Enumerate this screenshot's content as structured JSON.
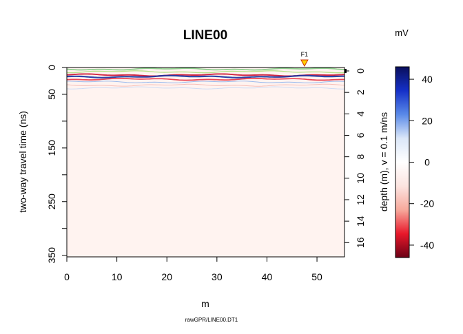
{
  "chart_data": {
    "type": "heatmap",
    "title": "LINE00",
    "unit_label": "mV",
    "xlabel": "m",
    "ylabel_left": "two-way travel time (ns)",
    "ylabel_right": "depth (m),   v = 0.1 m/ns",
    "source": "rawGPR/LINE00.DT1",
    "xlim": [
      0,
      55.5
    ],
    "ylim": [
      0,
      353
    ],
    "depth_lim": [
      0,
      17.65
    ],
    "x_ticks": [
      0,
      10,
      20,
      30,
      40,
      50
    ],
    "y_ticks": [
      0,
      50,
      100,
      150,
      200,
      250,
      300,
      350
    ],
    "y_tick_labels": [
      "0",
      "50",
      "",
      "150",
      "",
      "250",
      "",
      "350"
    ],
    "depth_ticks": [
      0,
      2,
      4,
      6,
      8,
      10,
      12,
      14,
      16
    ],
    "colorbar": {
      "min": -46,
      "max": 46,
      "ticks": [
        40,
        20,
        0,
        -20,
        -40
      ],
      "colors": [
        "#0a0f5c",
        "#1530c8",
        "#5a8ae8",
        "#dbe7f8",
        "#ffffff",
        "#fce4e0",
        "#f7a99c",
        "#e8182a",
        "#6b0016"
      ]
    },
    "fiducials": [
      {
        "label": "F1",
        "x": 47.5
      }
    ],
    "reflectors": [
      {
        "t": 3,
        "amp": 30,
        "color": "#7fc97f"
      },
      {
        "t": 8,
        "amp": 25,
        "color": "#b0e080"
      },
      {
        "t": 14,
        "amp": -35,
        "color": "#cc1030"
      },
      {
        "t": 17,
        "amp": 40,
        "color": "#1530a0"
      },
      {
        "t": 22,
        "amp": -30,
        "color": "#e83040"
      },
      {
        "t": 27,
        "amp": 15,
        "color": "#8fb4ec"
      },
      {
        "t": 33,
        "amp": -10,
        "color": "#f6b8b0"
      },
      {
        "t": 38,
        "amp": 8,
        "color": "#c8d8f4"
      }
    ]
  }
}
